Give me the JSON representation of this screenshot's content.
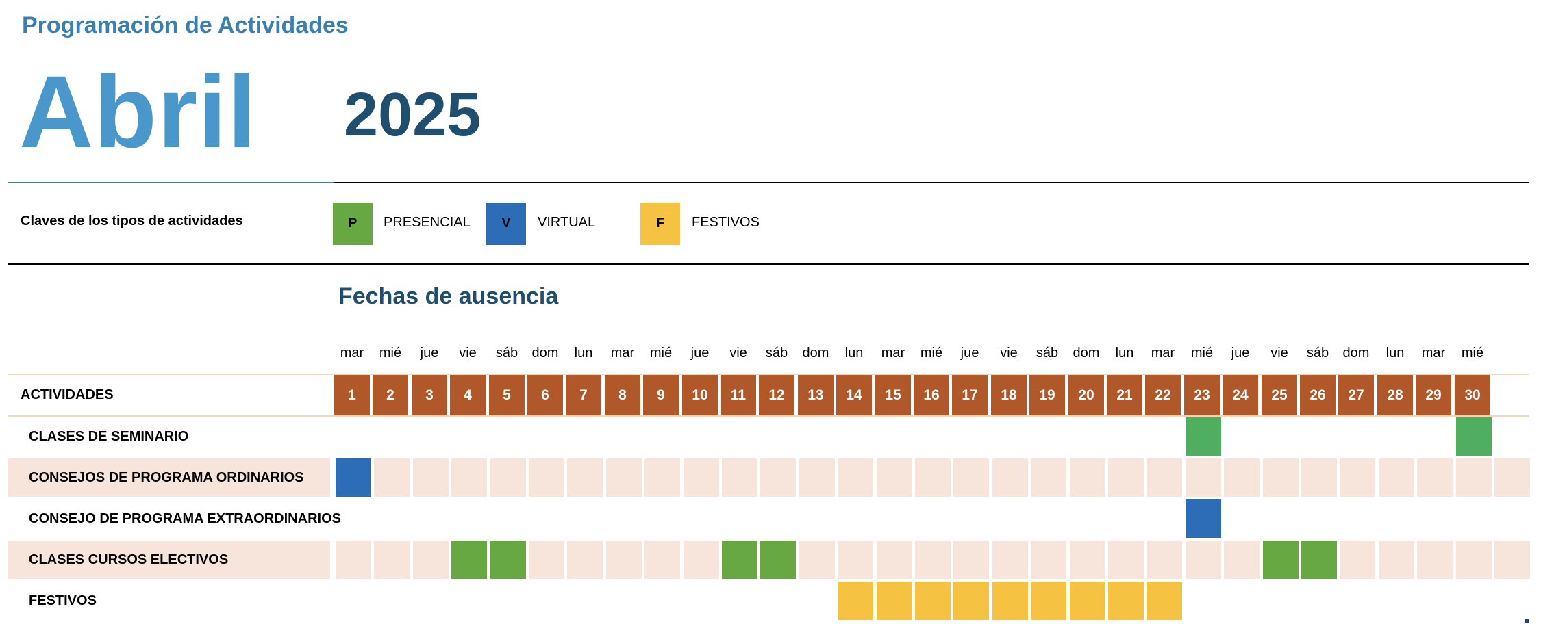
{
  "header": {
    "subtitle": "Programación de Actividades",
    "month": "Abril",
    "year": "2025"
  },
  "legend": {
    "label": "Claves de los tipos de actividades",
    "items": [
      {
        "code": "P",
        "name": "PRESENCIAL",
        "color": "#67a843"
      },
      {
        "code": "V",
        "name": "VIRTUAL",
        "color": "#2d6db8"
      },
      {
        "code": "F",
        "name": "FESTIVOS",
        "color": "#f5c242"
      }
    ]
  },
  "section": {
    "title": "Fechas de ausencia"
  },
  "calendar": {
    "days_of_week": [
      "mar",
      "mié",
      "jue",
      "vie",
      "sáb",
      "dom",
      "lun",
      "mar",
      "mié",
      "jue",
      "vie",
      "sáb",
      "dom",
      "lun",
      "mar",
      "mié",
      "jue",
      "vie",
      "sáb",
      "dom",
      "lun",
      "mar",
      "mié",
      "jue",
      "vie",
      "sáb",
      "dom",
      "lun",
      "mar",
      "mié"
    ],
    "days": [
      "1",
      "2",
      "3",
      "4",
      "5",
      "6",
      "7",
      "8",
      "9",
      "10",
      "11",
      "12",
      "13",
      "14",
      "15",
      "16",
      "17",
      "18",
      "19",
      "20",
      "21",
      "22",
      "23",
      "24",
      "25",
      "26",
      "27",
      "28",
      "29",
      "30"
    ],
    "header_label": "ACTIVIDADES"
  },
  "activities": [
    {
      "label": "CLASES DE SEMINARIO",
      "shaded": false,
      "marks": {
        "23": "S",
        "30": "S"
      }
    },
    {
      "label": "CONSEJOS DE PROGRAMA ORDINARIOS",
      "shaded": true,
      "marks": {
        "1": "V"
      }
    },
    {
      "label": "CONSEJO DE PROGRAMA EXTRAORDINARIOS",
      "shaded": false,
      "marks": {
        "23": "V"
      }
    },
    {
      "label": "CLASES CURSOS ELECTIVOS",
      "shaded": true,
      "marks": {
        "4": "P",
        "5": "P",
        "11": "P",
        "12": "P",
        "25": "P",
        "26": "P"
      }
    },
    {
      "label": "FESTIVOS",
      "shaded": false,
      "marks": {
        "14": "F",
        "15": "F",
        "16": "F",
        "17": "F",
        "18": "F",
        "19": "F",
        "20": "F",
        "21": "F",
        "22": "F"
      }
    }
  ]
}
